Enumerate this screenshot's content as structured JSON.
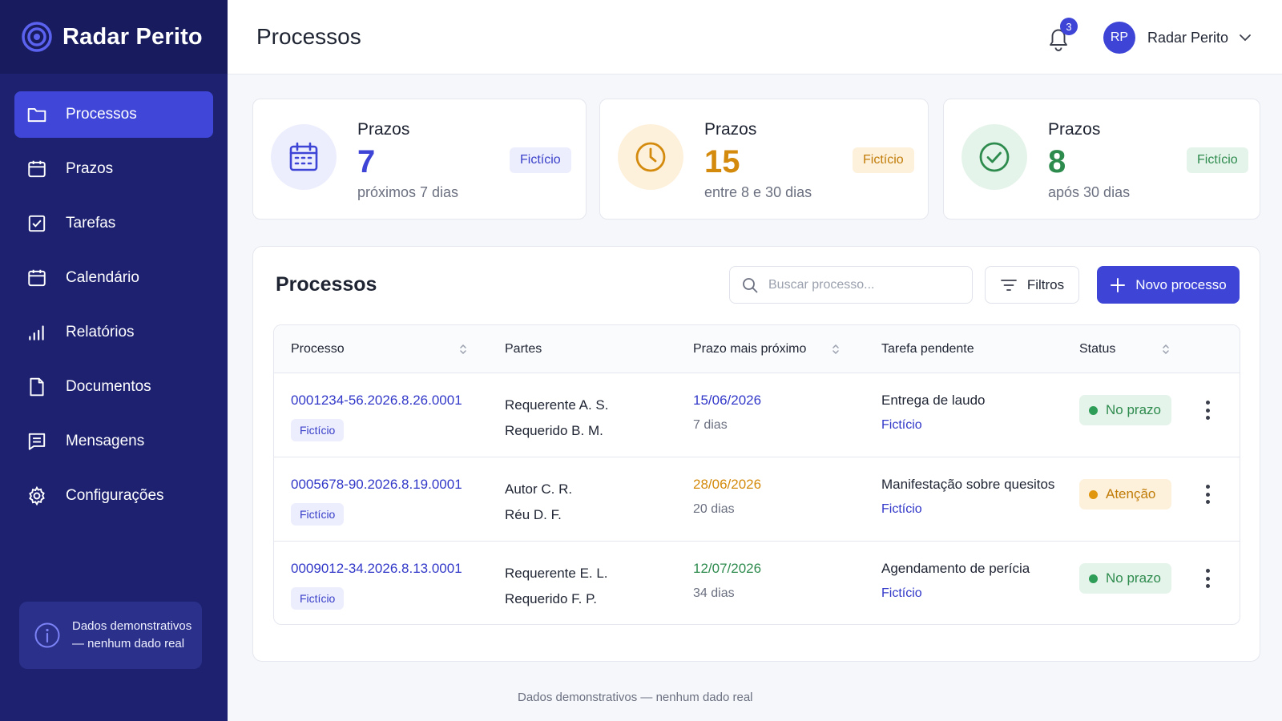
{
  "app": {
    "brand": "Radar Perito"
  },
  "sidebar": {
    "items": [
      {
        "label": "Processos",
        "icon": "folder-icon",
        "active": true
      },
      {
        "label": "Prazos",
        "icon": "calendar-icon"
      },
      {
        "label": "Tarefas",
        "icon": "checkbox-icon"
      },
      {
        "label": "Calendário",
        "icon": "calendar-icon"
      },
      {
        "label": "Relatórios",
        "icon": "bar-chart-icon"
      },
      {
        "label": "Documentos",
        "icon": "document-icon"
      },
      {
        "label": "Mensagens",
        "icon": "message-icon"
      },
      {
        "label": "Configurações",
        "icon": "gear-icon"
      }
    ],
    "demo_notice_line1": "Dados demonstrativos",
    "demo_notice_line2": "— nenhum dado real"
  },
  "header": {
    "title": "Processos",
    "notifications_count": "3",
    "user_initials": "RP",
    "user_name": "Radar Perito"
  },
  "stats": [
    {
      "label": "Prazos",
      "value": "7",
      "sub": "próximos 7 dias",
      "tag": "Fictício",
      "color": "#3d44d6",
      "icon": "calendar-icon"
    },
    {
      "label": "Prazos",
      "value": "15",
      "sub": "entre 8 e 30 dias",
      "tag": "Fictício",
      "color": "#d48a0c",
      "icon": "clock-icon"
    },
    {
      "label": "Prazos",
      "value": "8",
      "sub": "após 30 dias",
      "tag": "Fictício",
      "color": "#2e8b4e",
      "icon": "check-circle-icon"
    }
  ],
  "panel": {
    "title": "Processos",
    "search_placeholder": "Buscar processo...",
    "filter_label": "Filtros",
    "new_label": "Novo processo",
    "columns": {
      "processo": "Processo",
      "partes": "Partes",
      "prazo": "Prazo mais próximo",
      "tarefa": "Tarefa pendente",
      "status": "Status"
    },
    "rows": [
      {
        "processo": "0001234-56.2026.8.26.0001",
        "tag": "Fictício",
        "parte1": "Requerente A. S.",
        "parte2": "Requerido B. M.",
        "date": "15/06/2026",
        "days": "7 dias",
        "date_color": "#3238c8",
        "task": "Entrega de laudo",
        "task_sub": "Fictício",
        "status": "No prazo",
        "status_kind": "ok"
      },
      {
        "processo": "0005678-90.2026.8.19.0001",
        "tag": "Fictício",
        "parte1": "Autor C. R.",
        "parte2": "Réu D. F.",
        "date": "28/06/2026",
        "days": "20 dias",
        "date_color": "#d48a0c",
        "task": "Manifestação sobre quesitos",
        "task_sub": "Fictício",
        "status": "Atenção",
        "status_kind": "warn"
      },
      {
        "processo": "0009012-34.2026.8.13.0001",
        "tag": "Fictício",
        "parte1": "Requerente E. L.",
        "parte2": "Requerido F. P.",
        "date": "12/07/2026",
        "days": "34 dias",
        "date_color": "#2e8b4e",
        "task": "Agendamento de perícia",
        "task_sub": "Fictício",
        "status": "No prazo",
        "status_kind": "ok"
      }
    ]
  },
  "footer": {
    "note": "Dados demonstrativos — nenhum dado real"
  }
}
